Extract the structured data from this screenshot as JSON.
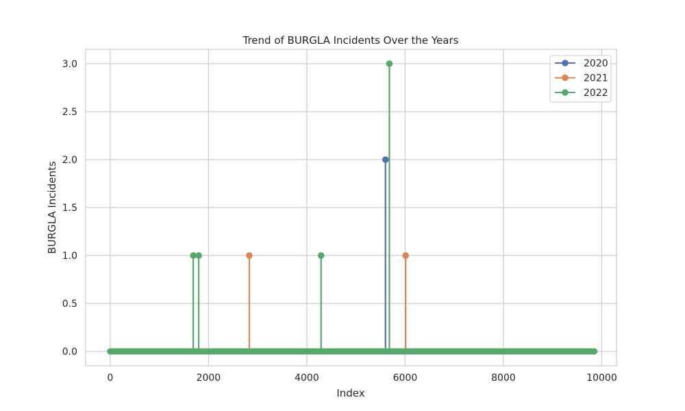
{
  "chart_data": {
    "type": "line",
    "title": "Trend of BURGLA Incidents Over the Years",
    "xlabel": "Index",
    "ylabel": "BURGLA Incidents",
    "xlim": [
      -500,
      10300
    ],
    "ylim": [
      -0.15,
      3.15
    ],
    "xticks": [
      0,
      2000,
      4000,
      6000,
      8000,
      10000
    ],
    "xtick_labels": [
      "0",
      "2000",
      "4000",
      "6000",
      "8000",
      "10000"
    ],
    "yticks": [
      0.0,
      0.5,
      1.0,
      1.5,
      2.0,
      2.5,
      3.0
    ],
    "ytick_labels": [
      "0.0",
      "0.5",
      "1.0",
      "1.5",
      "2.0",
      "2.5",
      "3.0"
    ],
    "grid": true,
    "legend_position": "top-right",
    "baseline": {
      "x_start": 0,
      "x_end": 9850,
      "value": 0
    },
    "series": [
      {
        "name": "2020",
        "color": "#4c72b0",
        "points": [
          [
            5600,
            2
          ]
        ]
      },
      {
        "name": "2021",
        "color": "#dd8452",
        "points": [
          [
            2830,
            1
          ],
          [
            6010,
            1
          ]
        ]
      },
      {
        "name": "2022",
        "color": "#55a868",
        "points": [
          [
            1690,
            1
          ],
          [
            1800,
            1
          ],
          [
            4290,
            1
          ],
          [
            5680,
            3
          ]
        ]
      }
    ]
  }
}
